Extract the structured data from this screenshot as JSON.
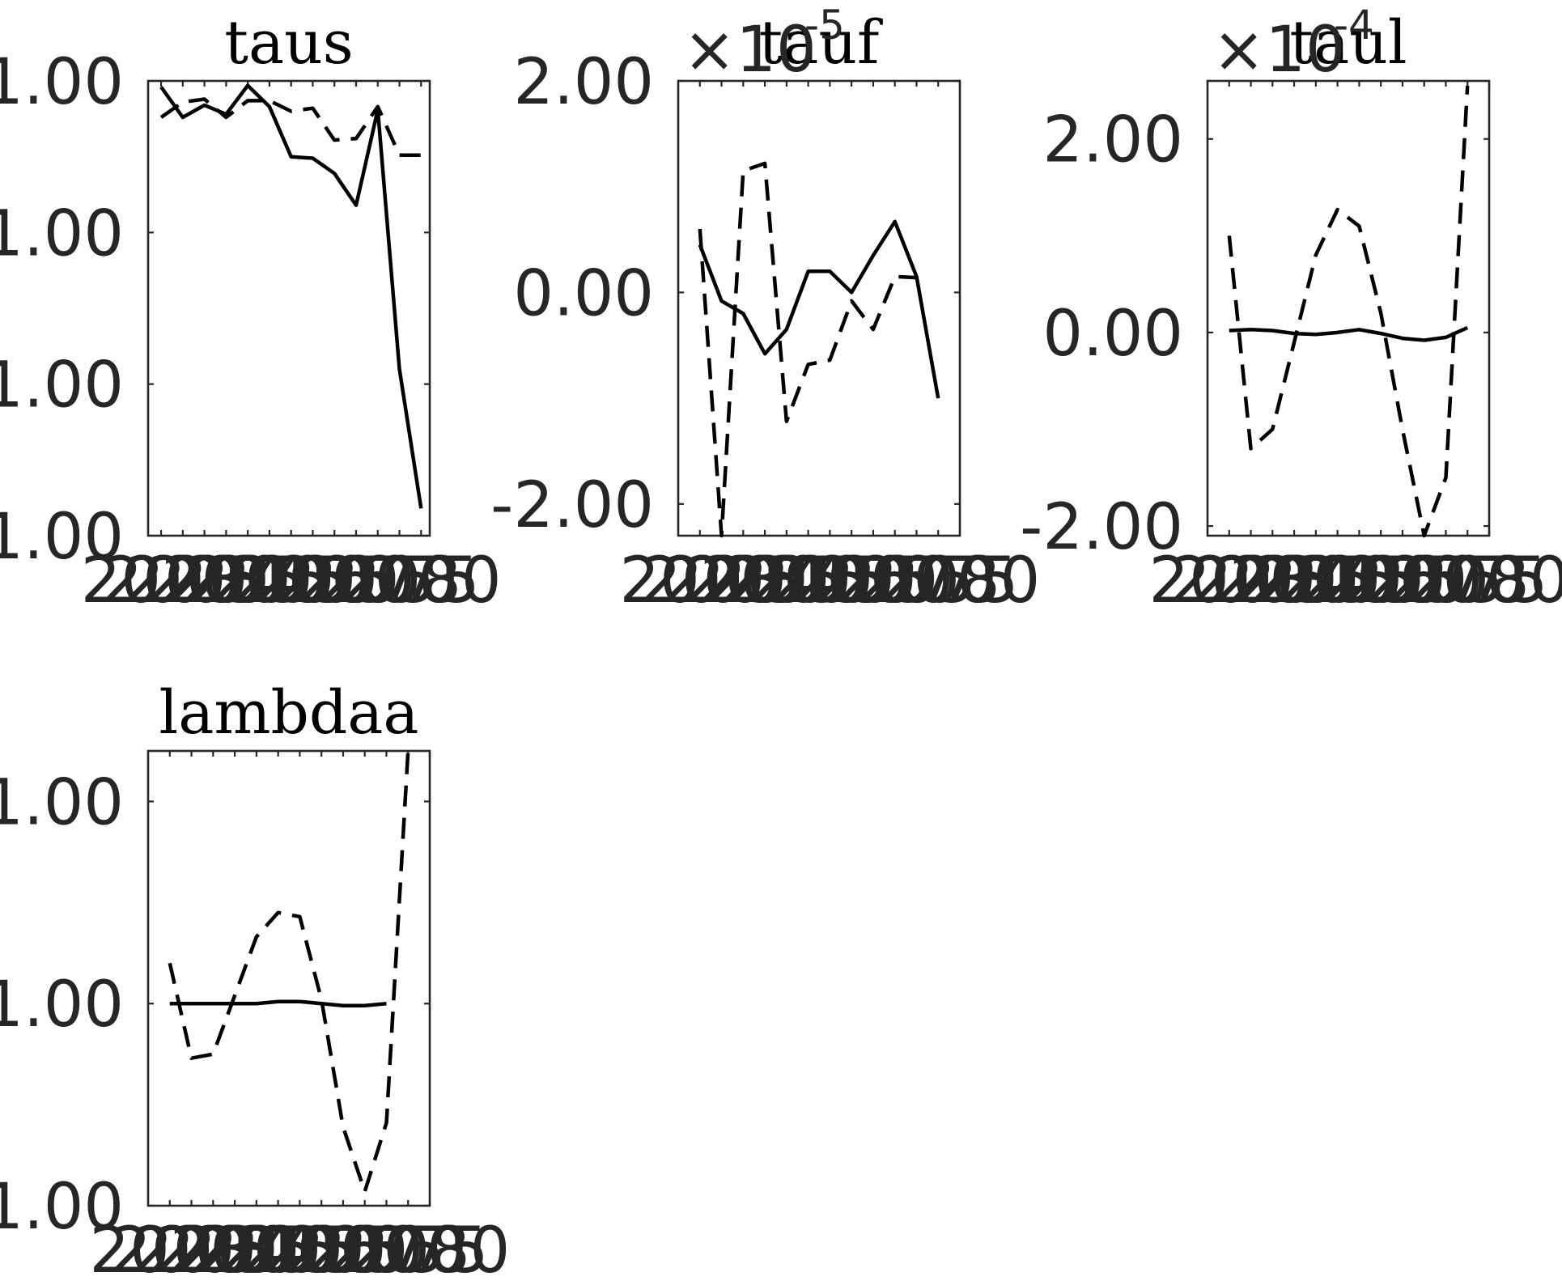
{
  "chart_data": [
    {
      "type": "line",
      "title": "taus",
      "multiplier": "",
      "x": [
        2020,
        2025,
        2030,
        2035,
        2040,
        2045,
        2050,
        2055,
        2060,
        2065,
        2070,
        2075,
        2080
      ],
      "xlim": [
        2017,
        2082
      ],
      "ylim": [
        0.3,
        3.3
      ],
      "yticks": [
        0.3,
        1.3,
        2.3,
        3.3
      ],
      "ytick_labels": [
        "1.00",
        "1.00",
        "1.00",
        "1.00"
      ],
      "xtick_labels": [
        "2020",
        "2025",
        "2030",
        "2035",
        "2040",
        "2045",
        "2050",
        "2055",
        "2060",
        "2065",
        "2070",
        "2075",
        "2080"
      ],
      "series": [
        {
          "style": "solid",
          "values": [
            3.26,
            3.06,
            3.14,
            3.08,
            3.27,
            3.13,
            2.8,
            2.79,
            2.69,
            2.48,
            3.11,
            1.4,
            0.48
          ]
        },
        {
          "style": "dashed",
          "values": [
            3.06,
            3.16,
            3.18,
            3.06,
            3.17,
            3.17,
            3.1,
            3.12,
            2.91,
            2.92,
            3.13,
            2.81,
            2.81
          ]
        }
      ]
    },
    {
      "type": "line",
      "title": "tauf",
      "multiplier": "×10",
      "multiplier_exponent": "-5",
      "x": [
        2020,
        2025,
        2030,
        2035,
        2040,
        2045,
        2050,
        2055,
        2060,
        2065,
        2070,
        2075,
        2080
      ],
      "xlim": [
        2015,
        2080
      ],
      "ylim": [
        -2.3,
        2.0
      ],
      "yticks": [
        -2,
        0,
        2
      ],
      "ytick_labels": [
        "-2.00",
        "0.00",
        "2.00"
      ],
      "xtick_labels": [
        "2020",
        "2025",
        "2030",
        "2035",
        "2040",
        "2045",
        "2050",
        "2055",
        "2060",
        "2065",
        "2070",
        "2075",
        "2080"
      ],
      "series": [
        {
          "style": "solid",
          "values": [
            0.45,
            -0.08,
            -0.2,
            -0.58,
            -0.35,
            0.2,
            0.2,
            0.0,
            0.35,
            0.67,
            0.15,
            -1.0,
            null
          ]
        },
        {
          "style": "dashed",
          "values": [
            0.6,
            -2.3,
            1.15,
            1.22,
            -1.22,
            -0.68,
            -0.64,
            -0.08,
            -0.35,
            0.15,
            0.14,
            null,
            null
          ]
        }
      ]
    },
    {
      "type": "line",
      "title": "taul",
      "multiplier": "×10",
      "multiplier_exponent": "-4",
      "x": [
        2020,
        2025,
        2030,
        2035,
        2040,
        2045,
        2050,
        2055,
        2060,
        2065,
        2070,
        2075,
        2080
      ],
      "xlim": [
        2015,
        2080
      ],
      "ylim": [
        -2.1,
        2.6
      ],
      "yticks": [
        -2,
        0,
        2
      ],
      "ytick_labels": [
        "-2.00",
        "0.00",
        "2.00"
      ],
      "xtick_labels": [
        "2020",
        "2025",
        "2030",
        "2035",
        "2040",
        "2045",
        "2050",
        "2055",
        "2060",
        "2065",
        "2070",
        "2075",
        "2080"
      ],
      "series": [
        {
          "style": "solid",
          "values": [
            0.02,
            0.03,
            0.02,
            -0.01,
            -0.02,
            0.0,
            0.03,
            -0.01,
            -0.06,
            -0.08,
            -0.05,
            0.05,
            null
          ]
        },
        {
          "style": "dashed",
          "values": [
            1.0,
            -1.2,
            -1.0,
            -0.1,
            0.8,
            1.27,
            1.1,
            0.2,
            -1.0,
            -2.1,
            -1.5,
            2.55,
            null
          ]
        }
      ]
    },
    {
      "type": "line",
      "title": "lambdaa",
      "multiplier": "",
      "x": [
        2020,
        2025,
        2030,
        2035,
        2040,
        2045,
        2050,
        2055,
        2060,
        2065,
        2070,
        2075,
        2080
      ],
      "xlim": [
        2015,
        2080
      ],
      "ylim": [
        0.0,
        2.25
      ],
      "yticks": [
        0.0,
        1.0,
        2.0
      ],
      "ytick_labels": [
        "1.00",
        "1.00",
        "1.00"
      ],
      "xtick_labels": [
        "2020",
        "2025",
        "2030",
        "2035",
        "2040",
        "2045",
        "2050",
        "2055",
        "2060",
        "2065",
        "2070",
        "2075",
        "2080"
      ],
      "series": [
        {
          "style": "solid",
          "values": [
            1.0,
            1.0,
            1.0,
            1.0,
            1.0,
            1.01,
            1.01,
            1.0,
            0.99,
            0.99,
            1.0,
            null,
            null
          ]
        },
        {
          "style": "dashed",
          "values": [
            1.2,
            0.73,
            0.75,
            1.04,
            1.33,
            1.45,
            1.43,
            1.02,
            0.39,
            0.07,
            0.41,
            2.25,
            null
          ]
        }
      ]
    }
  ]
}
